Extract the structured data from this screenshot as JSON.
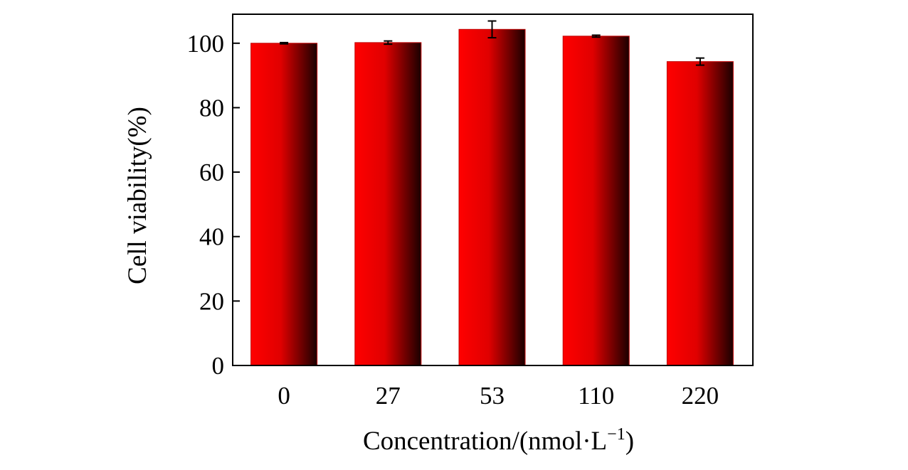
{
  "chart_data": {
    "type": "bar",
    "title": "",
    "xlabel": "Concentration/(nmol·L",
    "xlabel_superscript": "−1",
    "xlabel_close": ")",
    "ylabel": "Cell viability(%)",
    "categories": [
      "0",
      "27",
      "53",
      "110",
      "220"
    ],
    "series": [
      {
        "values": [
          100,
          100.2,
          104.3,
          102.2,
          94.3
        ],
        "errors": [
          0.2,
          0.5,
          2.6,
          0.3,
          1.1
        ]
      }
    ],
    "ylim": [
      0,
      109
    ],
    "yticks": [
      0,
      20,
      40,
      60,
      80,
      100
    ],
    "grid": false,
    "legend": "none",
    "colors": {
      "bar_light": "#ff0000",
      "bar_mid": "#e00000",
      "bar_dark": "#1a0000",
      "bar_edge": "#c00000",
      "axis": "#000000"
    }
  }
}
